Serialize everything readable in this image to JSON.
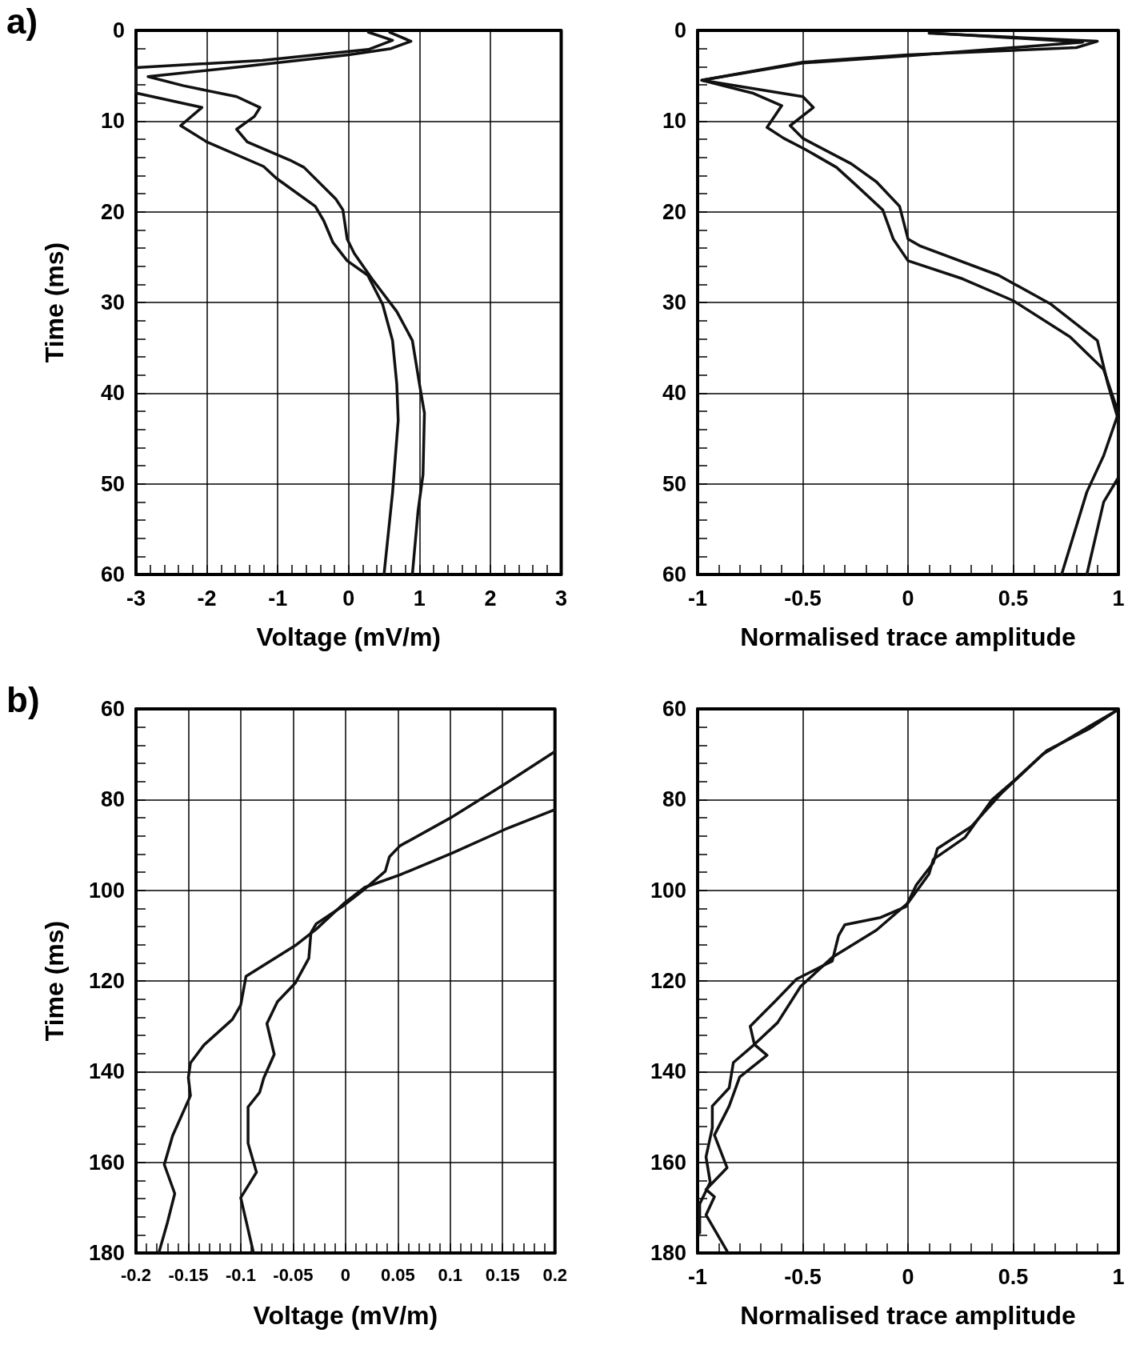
{
  "chart_data": [
    {
      "type": "line",
      "xlabel": "Voltage (mV/m)",
      "ylabel": "Time (ms)",
      "annotations": [
        "a)"
      ],
      "xlim": [
        -3,
        3
      ],
      "xticks": [
        -3,
        -2,
        -1,
        0,
        1,
        2,
        3
      ],
      "ylim": [
        60,
        0
      ],
      "yticks": [
        0,
        10,
        20,
        30,
        40,
        50,
        60
      ],
      "grid": true,
      "marker": "none",
      "series": [
        {
          "color": "#111111",
          "x": [
            0.58,
            0.88,
            0.6,
            0,
            -1.5,
            -2.83,
            -2.33,
            -1.58,
            -1.25,
            -1.33,
            -1.58,
            -1.43,
            -0.83,
            -0.63,
            -0.18,
            -0.08,
            -0.02,
            0.08,
            0.33,
            0.68,
            0.9,
            1.0,
            1.07,
            1.05,
            0.98,
            0.9
          ],
          "values": [
            0.2,
            1.2,
            2.0,
            2.7,
            4.0,
            5.1,
            6.1,
            7.3,
            8.5,
            9.5,
            10.9,
            12.3,
            14.3,
            15.1,
            18.6,
            19.8,
            23,
            24.6,
            27.4,
            31,
            34.2,
            39,
            42.2,
            49,
            53,
            60
          ]
        },
        {
          "color": "#111111",
          "x": [
            0.28,
            0.62,
            0.28,
            -1.22,
            -3,
            -3,
            -2.07,
            -2.37,
            -2.0,
            -1.2,
            -1.02,
            -0.47,
            -0.35,
            -0.22,
            -0.02,
            0.27,
            0.48,
            0.62,
            0.68,
            0.7,
            0.62,
            0.5
          ],
          "values": [
            0.2,
            1.1,
            2.1,
            3.3,
            4.1,
            6.9,
            8.5,
            10.5,
            12.3,
            15,
            16.3,
            19.4,
            21,
            23.4,
            25.4,
            27,
            30.2,
            34.2,
            39,
            43,
            51,
            60
          ]
        }
      ]
    },
    {
      "type": "line",
      "xlabel": "Normalised trace amplitude",
      "xlim": [
        -1,
        1
      ],
      "xticks": [
        -1,
        -0.5,
        0,
        0.5,
        1
      ],
      "ylim": [
        60,
        0
      ],
      "yticks": [
        0,
        10,
        20,
        30,
        40,
        50,
        60
      ],
      "grid": true,
      "marker": "none",
      "series": [
        {
          "color": "#111111",
          "x": [
            0.1,
            0.9,
            0.8,
            0,
            -0.5,
            -0.98,
            -0.74,
            -0.6,
            -0.67,
            -0.59,
            -0.49,
            -0.34,
            -0.25,
            -0.12,
            -0.07,
            0,
            0.26,
            0.5,
            0.77,
            0.93,
            1.0,
            0.93,
            0.85,
            0.73
          ],
          "values": [
            0.3,
            1.2,
            1.9,
            2.7,
            3.5,
            5.5,
            6.9,
            8.3,
            10.7,
            11.9,
            13.1,
            15.1,
            17,
            19.8,
            23,
            25.4,
            27.4,
            29.8,
            33.8,
            37.4,
            42.2,
            46.9,
            50.9,
            60
          ]
        },
        {
          "color": "#111111",
          "x": [
            0.13,
            0.83,
            0,
            -0.5,
            -0.98,
            -0.5,
            -0.45,
            -0.56,
            -0.5,
            -0.27,
            -0.15,
            -0.04,
            0,
            0.06,
            0.43,
            0.68,
            0.9,
            0.95,
            1.0,
            1.0,
            0.93,
            0.85
          ],
          "values": [
            0.3,
            1.3,
            2.8,
            3.6,
            5.5,
            7.3,
            8.5,
            10.5,
            11.9,
            14.7,
            16.7,
            19.4,
            23,
            23.8,
            27,
            30.2,
            34.2,
            39,
            43,
            49.3,
            52,
            60
          ]
        }
      ]
    },
    {
      "type": "line",
      "xlabel": "Voltage (mV/m)",
      "ylabel": "Time (ms)",
      "annotations": [
        "b)"
      ],
      "xlim": [
        -0.2,
        0.2
      ],
      "xticks": [
        -0.2,
        -0.15,
        -0.1,
        -0.05,
        0,
        0.05,
        0.1,
        0.15,
        0.2
      ],
      "ylim": [
        180,
        60
      ],
      "yticks": [
        60,
        80,
        100,
        120,
        140,
        160,
        180
      ],
      "grid": true,
      "marker": "none",
      "series": [
        {
          "color": "#111111",
          "x": [
            0.2,
            0.152,
            0.102,
            0.052,
            0.042,
            0.038,
            0.018,
            -0.002,
            -0.028,
            -0.033,
            -0.035,
            -0.048,
            -0.065,
            -0.075,
            -0.068,
            -0.078,
            -0.082,
            -0.093,
            -0.093,
            -0.085,
            -0.1,
            -0.088
          ],
          "values": [
            69.4,
            76.6,
            83.8,
            90.2,
            92.6,
            95.8,
            99.8,
            103.4,
            107.4,
            109.4,
            115,
            120.5,
            124.6,
            129.4,
            136.2,
            141.4,
            144.6,
            147.8,
            155.8,
            162.2,
            167.8,
            179.8
          ]
        },
        {
          "color": "#111111",
          "x": [
            0.2,
            0.152,
            0.102,
            0.052,
            0.018,
            -0.002,
            -0.028,
            -0.048,
            -0.095,
            -0.1,
            -0.108,
            -0.135,
            -0.148,
            -0.15,
            -0.148,
            -0.165,
            -0.173,
            -0.163,
            -0.17,
            -0.178
          ],
          "values": [
            82.2,
            86.6,
            91.8,
            96.6,
            99.4,
            103,
            108.6,
            112.2,
            119,
            125.3,
            128.5,
            134.1,
            138.1,
            141.3,
            145.3,
            154.1,
            160.5,
            166.9,
            173.3,
            179.8
          ]
        }
      ]
    },
    {
      "type": "line",
      "xlabel": "Normalised trace amplitude",
      "xlim": [
        -1,
        1
      ],
      "xticks": [
        -1,
        -0.5,
        0,
        0.5,
        1
      ],
      "ylim": [
        180,
        60
      ],
      "yticks": [
        60,
        80,
        100,
        120,
        140,
        160,
        180
      ],
      "grid": true,
      "marker": "none",
      "series": [
        {
          "color": "#111111",
          "x": [
            0.99,
            0.86,
            0.66,
            0.5,
            0.4,
            0.27,
            0.12,
            0.1,
            0,
            -0.15,
            -0.36,
            -0.51,
            -0.62,
            -0.73,
            -0.67,
            -0.8,
            -0.85,
            -0.92,
            -0.86,
            -0.96,
            -0.92,
            -0.96,
            -0.86
          ],
          "values": [
            60.4,
            64.4,
            69.2,
            76,
            80,
            88.4,
            93.2,
            96.4,
            102.8,
            108.8,
            114.8,
            121.2,
            129.2,
            134,
            136.4,
            141.2,
            147.6,
            154,
            161.2,
            166,
            167.6,
            171.6,
            179.6
          ]
        },
        {
          "color": "#111111",
          "x": [
            0.99,
            0.87,
            0.64,
            0.44,
            0.3,
            0.14,
            0.12,
            0.04,
            -0.01,
            -0.13,
            -0.3,
            -0.33,
            -0.36,
            -0.53,
            -0.63,
            -0.75,
            -0.73,
            -0.83,
            -0.85,
            -0.93,
            -0.93,
            -0.96,
            -0.94,
            -0.99,
            -0.99
          ],
          "values": [
            60.4,
            63.6,
            70,
            78.8,
            86,
            90.8,
            94,
            98.8,
            103.6,
            106,
            107.6,
            110,
            115.6,
            119.6,
            124.4,
            130,
            134,
            138,
            143.6,
            147.6,
            152.4,
            158.8,
            164.4,
            169.2,
            175.6
          ]
        }
      ]
    }
  ]
}
